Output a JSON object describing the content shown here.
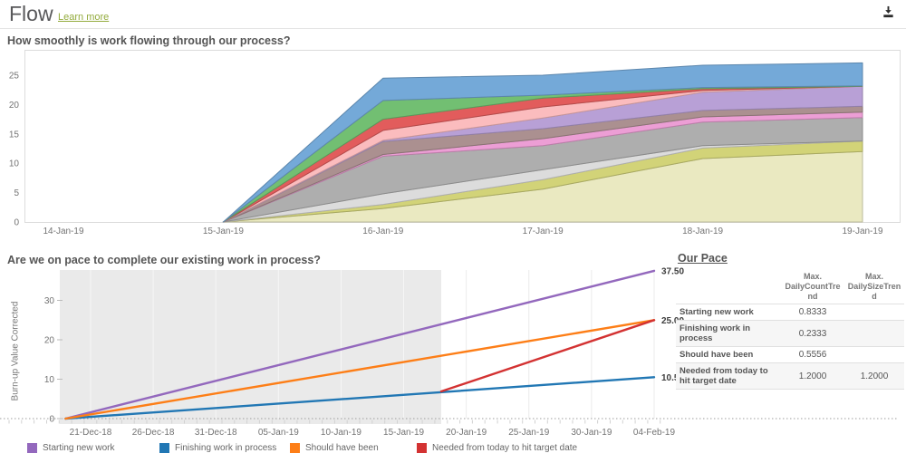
{
  "header": {
    "title": "Flow",
    "learn_more_label": "Learn more"
  },
  "chart_data": [
    {
      "type": "area",
      "stacked": true,
      "title": "How smoothly is work flowing through our process?",
      "x": [
        "14-Jan-19",
        "15-Jan-19",
        "16-Jan-19",
        "17-Jan-19",
        "18-Jan-19",
        "19-Jan-19"
      ],
      "yticks": [
        0,
        5,
        10,
        15,
        20,
        25
      ],
      "ylim": [
        0,
        27
      ],
      "grid": false,
      "series": [
        {
          "name": "band-pale-yellow",
          "color": "#eae9c1",
          "values": [
            0,
            0,
            2.3,
            5.6,
            10.8,
            12.0
          ]
        },
        {
          "name": "band-olive",
          "color": "#d2d378",
          "values": [
            0,
            0,
            0.7,
            1.6,
            1.8,
            1.8
          ]
        },
        {
          "name": "band-light-gray",
          "color": "#dcdcdc",
          "values": [
            0,
            0,
            1.8,
            1.7,
            0.4,
            0
          ]
        },
        {
          "name": "band-gray",
          "color": "#aeaeae",
          "values": [
            0,
            0,
            6.4,
            4.1,
            4.0,
            4.0
          ]
        },
        {
          "name": "band-pink",
          "color": "#ec9ed5",
          "values": [
            0,
            0,
            0.3,
            1.2,
            0.9,
            0.9
          ]
        },
        {
          "name": "band-taupe",
          "color": "#ab9090",
          "values": [
            0,
            0,
            2.2,
            1.7,
            1.1,
            1.0
          ]
        },
        {
          "name": "band-purple",
          "color": "#b8a0d6",
          "values": [
            0,
            0,
            0.2,
            1.8,
            3.1,
            3.4
          ]
        },
        {
          "name": "band-light-pink",
          "color": "#fbbcbe",
          "values": [
            0,
            0,
            1.7,
            1.9,
            0.3,
            0
          ]
        },
        {
          "name": "band-red",
          "color": "#e25c5c",
          "values": [
            0,
            0,
            1.9,
            1.5,
            0.3,
            0
          ]
        },
        {
          "name": "band-green",
          "color": "#72bf72",
          "values": [
            0,
            0,
            3.2,
            0.5,
            0.2,
            0.1
          ]
        },
        {
          "name": "band-blue",
          "color": "#74a9d8",
          "values": [
            0,
            0,
            3.8,
            3.4,
            3.8,
            3.9
          ]
        }
      ]
    },
    {
      "type": "line",
      "title": "Are we on pace to complete our existing work in process?",
      "ylabel": "Burn-up Value Corrected",
      "xticks": [
        "21-Dec-18",
        "26-Dec-18",
        "31-Dec-18",
        "05-Jan-19",
        "10-Jan-19",
        "15-Jan-19",
        "20-Jan-19",
        "25-Jan-19",
        "30-Jan-19",
        "04-Feb-19"
      ],
      "yticks": [
        0,
        10,
        20,
        30
      ],
      "shaded_region": {
        "from": "19-Dec-18",
        "to": "18-Jan-19"
      },
      "zero_line_dotted": true,
      "series": [
        {
          "name": "Starting new work",
          "color": "#9368bd",
          "end_label": "37.50",
          "points": [
            {
              "date": "19-Dec-18",
              "value": 0
            },
            {
              "date": "04-Feb-19",
              "value": 37.5
            }
          ]
        },
        {
          "name": "Finishing work in process",
          "color": "#2177b4",
          "end_label": "10.50",
          "points": [
            {
              "date": "19-Dec-18",
              "value": 0
            },
            {
              "date": "04-Feb-19",
              "value": 10.5
            }
          ]
        },
        {
          "name": "Should have been",
          "color": "#fd7e17",
          "end_label": "25.00",
          "points": [
            {
              "date": "19-Dec-18",
              "value": 0
            },
            {
              "date": "04-Feb-19",
              "value": 25
            }
          ]
        },
        {
          "name": "Needed from today to hit target date",
          "color": "#d33232",
          "end_label": "",
          "points": [
            {
              "date": "18-Jan-19",
              "value": 6.9
            },
            {
              "date": "04-Feb-19",
              "value": 25
            }
          ]
        }
      ]
    }
  ],
  "pace": {
    "title": "Our Pace",
    "columns": [
      "Max. DailyCountTrend",
      "Max. DailySizeTrend"
    ],
    "rows": [
      {
        "label": "Starting new work",
        "count_trend": "0.8333",
        "size_trend": ""
      },
      {
        "label": "Finishing work in process",
        "count_trend": "0.2333",
        "size_trend": ""
      },
      {
        "label": "Should have been",
        "count_trend": "0.5556",
        "size_trend": ""
      },
      {
        "label": "Needed from today to hit target date",
        "count_trend": "1.2000",
        "size_trend": "1.2000"
      }
    ]
  }
}
